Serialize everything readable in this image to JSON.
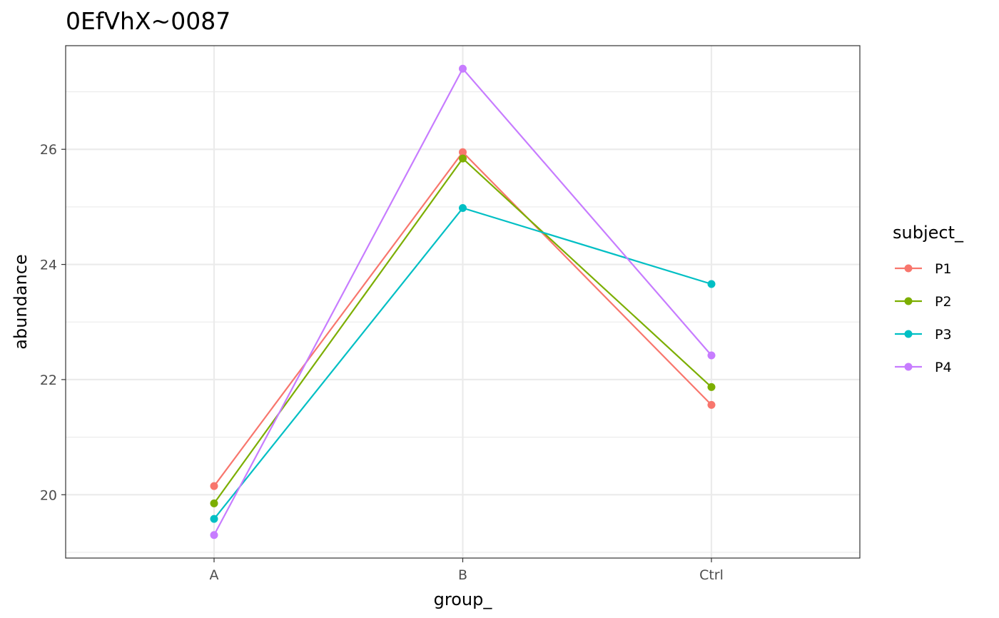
{
  "chart_data": {
    "type": "line",
    "title": "0EfVhX~0087",
    "xlabel": "group_",
    "ylabel": "abundance",
    "categories": [
      "A",
      "B",
      "Ctrl"
    ],
    "ylim": [
      18.9,
      27.8
    ],
    "y_ticks": [
      20,
      22,
      24,
      26
    ],
    "y_tick_labels": [
      "20",
      "22",
      "24",
      "26"
    ],
    "grid": true,
    "legend": {
      "title": "subject_",
      "position": "right"
    },
    "series": [
      {
        "name": "P1",
        "color": "#F8766D",
        "values": [
          20.15,
          25.95,
          21.56
        ]
      },
      {
        "name": "P2",
        "color": "#7CAE00",
        "values": [
          19.85,
          25.84,
          21.87
        ]
      },
      {
        "name": "P3",
        "color": "#00BFC4",
        "values": [
          19.58,
          24.98,
          23.66
        ]
      },
      {
        "name": "P4",
        "color": "#C77CFF",
        "values": [
          19.3,
          27.4,
          22.42
        ]
      }
    ]
  }
}
